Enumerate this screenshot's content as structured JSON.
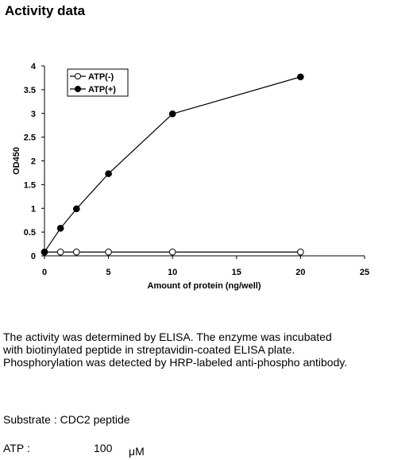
{
  "heading": "Activity data",
  "chart_data": {
    "type": "line",
    "xlabel": "Amount of protein (ng/well)",
    "ylabel": "OD450",
    "xlim": [
      0,
      25
    ],
    "ylim": [
      0,
      4
    ],
    "xticks": [
      "0",
      "5",
      "10",
      "15",
      "20",
      "25"
    ],
    "yticks": [
      "0",
      "0.5",
      "1",
      "1.5",
      "2",
      "2.5",
      "3",
      "3.5",
      "4"
    ],
    "legend_position": "top-left",
    "series": [
      {
        "name": "ATP(-)",
        "marker": "open-circle",
        "x": [
          0,
          1.25,
          2.5,
          5,
          10,
          20
        ],
        "y": [
          0.08,
          0.08,
          0.08,
          0.08,
          0.08,
          0.08
        ]
      },
      {
        "name": "ATP(+)",
        "marker": "filled-circle",
        "x": [
          0,
          1.25,
          2.5,
          5,
          10,
          20
        ],
        "y": [
          0.08,
          0.58,
          0.99,
          1.73,
          2.99,
          3.77
        ]
      }
    ]
  },
  "description": {
    "line1": "The activity was determined by ELISA. The enzyme was incubated",
    "line2": "with biotinylated peptide in streptavidin-coated ELISA plate.",
    "line3": "Phosphorylation was detected by HRP-labeled anti-phospho antibody."
  },
  "substrate": "Substrate : CDC2 peptide",
  "atp": {
    "label": "ATP :",
    "value": "100",
    "unit": "μM"
  }
}
